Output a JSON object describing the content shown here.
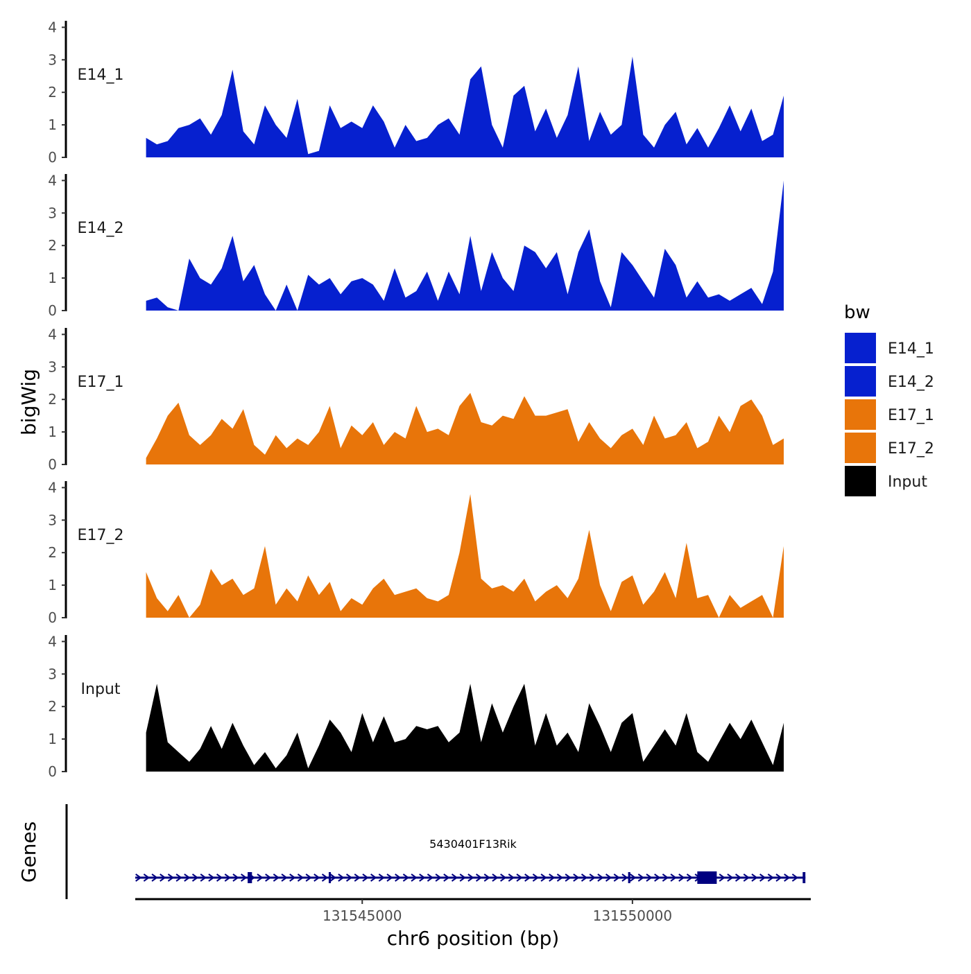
{
  "chart_data": {
    "type": "area",
    "title": "",
    "xlabel": "chr6 position (bp)",
    "ylabel": "bigWig",
    "genes_label": "Genes",
    "xlim": [
      131540800,
      131553300
    ],
    "ylim": [
      0,
      4.2
    ],
    "y_ticks": [
      "0",
      "1",
      "2",
      "3",
      "4"
    ],
    "x_ticks": [
      {
        "value": 131545000,
        "label": "131545000"
      },
      {
        "value": 131550000,
        "label": "131550000"
      }
    ],
    "legend_title": "bw",
    "series": [
      {
        "name": "E14_1",
        "label": "E14_1",
        "color": "#0620CF",
        "x": [
          131541000,
          131541200,
          131541400,
          131541600,
          131541800,
          131542000,
          131542200,
          131542400,
          131542600,
          131542800,
          131543000,
          131543200,
          131543400,
          131543600,
          131543800,
          131544000,
          131544200,
          131544400,
          131544600,
          131544800,
          131545000,
          131545200,
          131545400,
          131545600,
          131545800,
          131546000,
          131546200,
          131546400,
          131546600,
          131546800,
          131547000,
          131547200,
          131547400,
          131547600,
          131547800,
          131548000,
          131548200,
          131548400,
          131548600,
          131548800,
          131549000,
          131549200,
          131549400,
          131549600,
          131549800,
          131550000,
          131550200,
          131550400,
          131550600,
          131550800,
          131551000,
          131551200,
          131551400,
          131551600,
          131551800,
          131552000,
          131552200,
          131552400,
          131552600,
          131552800
        ],
        "values": [
          0.6,
          0.4,
          0.5,
          0.9,
          1.0,
          1.2,
          0.7,
          1.3,
          2.7,
          0.8,
          0.4,
          1.6,
          1.0,
          0.6,
          1.8,
          0.1,
          0.2,
          1.6,
          0.9,
          1.1,
          0.9,
          1.6,
          1.1,
          0.3,
          1.0,
          0.5,
          0.6,
          1.0,
          1.2,
          0.7,
          2.4,
          2.8,
          1.0,
          0.3,
          1.9,
          2.2,
          0.8,
          1.5,
          0.6,
          1.3,
          2.8,
          0.5,
          1.4,
          0.7,
          1.0,
          3.1,
          0.7,
          0.3,
          1.0,
          1.4,
          0.4,
          0.9,
          0.3,
          0.9,
          1.6,
          0.8,
          1.5,
          0.5,
          0.7,
          1.9
        ]
      },
      {
        "name": "E14_2",
        "label": "E14_2",
        "color": "#0620CF",
        "x": [
          131541000,
          131541200,
          131541400,
          131541600,
          131541800,
          131542000,
          131542200,
          131542400,
          131542600,
          131542800,
          131543000,
          131543200,
          131543400,
          131543600,
          131543800,
          131544000,
          131544200,
          131544400,
          131544600,
          131544800,
          131545000,
          131545200,
          131545400,
          131545600,
          131545800,
          131546000,
          131546200,
          131546400,
          131546600,
          131546800,
          131547000,
          131547200,
          131547400,
          131547600,
          131547800,
          131548000,
          131548200,
          131548400,
          131548600,
          131548800,
          131549000,
          131549200,
          131549400,
          131549600,
          131549800,
          131550000,
          131550200,
          131550400,
          131550600,
          131550800,
          131551000,
          131551200,
          131551400,
          131551600,
          131551800,
          131552000,
          131552200,
          131552400,
          131552600,
          131552800
        ],
        "values": [
          0.3,
          0.4,
          0.1,
          0.0,
          1.6,
          1.0,
          0.8,
          1.3,
          2.3,
          0.9,
          1.4,
          0.5,
          0.0,
          0.8,
          0.0,
          1.1,
          0.8,
          1.0,
          0.5,
          0.9,
          1.0,
          0.8,
          0.3,
          1.3,
          0.4,
          0.6,
          1.2,
          0.3,
          1.2,
          0.5,
          2.3,
          0.6,
          1.8,
          1.0,
          0.6,
          2.0,
          1.8,
          1.3,
          1.8,
          0.5,
          1.8,
          2.5,
          0.9,
          0.1,
          1.8,
          1.4,
          0.9,
          0.4,
          1.9,
          1.4,
          0.4,
          0.9,
          0.4,
          0.5,
          0.3,
          0.5,
          0.7,
          0.2,
          1.2,
          4.0
        ]
      },
      {
        "name": "E17_1",
        "label": "E17_1",
        "color": "#E8750A",
        "x": [
          131541000,
          131541200,
          131541400,
          131541600,
          131541800,
          131542000,
          131542200,
          131542400,
          131542600,
          131542800,
          131543000,
          131543200,
          131543400,
          131543600,
          131543800,
          131544000,
          131544200,
          131544400,
          131544600,
          131544800,
          131545000,
          131545200,
          131545400,
          131545600,
          131545800,
          131546000,
          131546200,
          131546400,
          131546600,
          131546800,
          131547000,
          131547200,
          131547400,
          131547600,
          131547800,
          131548000,
          131548200,
          131548400,
          131548600,
          131548800,
          131549000,
          131549200,
          131549400,
          131549600,
          131549800,
          131550000,
          131550200,
          131550400,
          131550600,
          131550800,
          131551000,
          131551200,
          131551400,
          131551600,
          131551800,
          131552000,
          131552200,
          131552400,
          131552600,
          131552800
        ],
        "values": [
          0.2,
          0.8,
          1.5,
          1.9,
          0.9,
          0.6,
          0.9,
          1.4,
          1.1,
          1.7,
          0.6,
          0.3,
          0.9,
          0.5,
          0.8,
          0.6,
          1.0,
          1.8,
          0.5,
          1.2,
          0.9,
          1.3,
          0.6,
          1.0,
          0.8,
          1.8,
          1.0,
          1.1,
          0.9,
          1.8,
          2.2,
          1.3,
          1.2,
          1.5,
          1.4,
          2.1,
          1.5,
          1.5,
          1.6,
          1.7,
          0.7,
          1.3,
          0.8,
          0.5,
          0.9,
          1.1,
          0.6,
          1.5,
          0.8,
          0.9,
          1.3,
          0.5,
          0.7,
          1.5,
          1.0,
          1.8,
          2.0,
          1.5,
          0.6,
          0.8
        ]
      },
      {
        "name": "E17_2",
        "label": "E17_2",
        "color": "#E8750A",
        "x": [
          131541000,
          131541200,
          131541400,
          131541600,
          131541800,
          131542000,
          131542200,
          131542400,
          131542600,
          131542800,
          131543000,
          131543200,
          131543400,
          131543600,
          131543800,
          131544000,
          131544200,
          131544400,
          131544600,
          131544800,
          131545000,
          131545200,
          131545400,
          131545600,
          131545800,
          131546000,
          131546200,
          131546400,
          131546600,
          131546800,
          131547000,
          131547200,
          131547400,
          131547600,
          131547800,
          131548000,
          131548200,
          131548400,
          131548600,
          131548800,
          131549000,
          131549200,
          131549400,
          131549600,
          131549800,
          131550000,
          131550200,
          131550400,
          131550600,
          131550800,
          131551000,
          131551200,
          131551400,
          131551600,
          131551800,
          131552000,
          131552200,
          131552400,
          131552600,
          131552800
        ],
        "values": [
          1.4,
          0.6,
          0.2,
          0.7,
          0.0,
          0.4,
          1.5,
          1.0,
          1.2,
          0.7,
          0.9,
          2.2,
          0.4,
          0.9,
          0.5,
          1.3,
          0.7,
          1.1,
          0.2,
          0.6,
          0.4,
          0.9,
          1.2,
          0.7,
          0.8,
          0.9,
          0.6,
          0.5,
          0.7,
          2.0,
          3.8,
          1.2,
          0.9,
          1.0,
          0.8,
          1.2,
          0.5,
          0.8,
          1.0,
          0.6,
          1.2,
          2.7,
          1.0,
          0.2,
          1.1,
          1.3,
          0.4,
          0.8,
          1.4,
          0.6,
          2.3,
          0.6,
          0.7,
          0.0,
          0.7,
          0.3,
          0.5,
          0.7,
          0.0,
          2.2
        ]
      },
      {
        "name": "Input",
        "label": "Input",
        "color": "#000000",
        "x": [
          131541000,
          131541200,
          131541400,
          131541600,
          131541800,
          131542000,
          131542200,
          131542400,
          131542600,
          131542800,
          131543000,
          131543200,
          131543400,
          131543600,
          131543800,
          131544000,
          131544200,
          131544400,
          131544600,
          131544800,
          131545000,
          131545200,
          131545400,
          131545600,
          131545800,
          131546000,
          131546200,
          131546400,
          131546600,
          131546800,
          131547000,
          131547200,
          131547400,
          131547600,
          131547800,
          131548000,
          131548200,
          131548400,
          131548600,
          131548800,
          131549000,
          131549200,
          131549400,
          131549600,
          131549800,
          131550000,
          131550200,
          131550400,
          131550600,
          131550800,
          131551000,
          131551200,
          131551400,
          131551600,
          131551800,
          131552000,
          131552200,
          131552400,
          131552600,
          131552800
        ],
        "values": [
          1.2,
          2.7,
          0.9,
          0.6,
          0.3,
          0.7,
          1.4,
          0.7,
          1.5,
          0.8,
          0.2,
          0.6,
          0.1,
          0.5,
          1.2,
          0.1,
          0.8,
          1.6,
          1.2,
          0.6,
          1.8,
          0.9,
          1.7,
          0.9,
          1.0,
          1.4,
          1.3,
          1.4,
          0.9,
          1.2,
          2.7,
          0.9,
          2.1,
          1.2,
          2.0,
          2.7,
          0.8,
          1.8,
          0.8,
          1.2,
          0.6,
          2.1,
          1.4,
          0.6,
          1.5,
          1.8,
          0.3,
          0.8,
          1.3,
          0.8,
          1.8,
          0.6,
          0.3,
          0.9,
          1.5,
          1.0,
          1.6,
          0.9,
          0.2,
          1.5
        ]
      }
    ],
    "gene_track": {
      "name": "5430401F13Rik",
      "strand": "+",
      "color": "#000080",
      "start": 131540800,
      "end": 131553200,
      "exons": [
        [
          131542880,
          131542960
        ],
        [
          131544380,
          131544420
        ],
        [
          131549920,
          131549960
        ],
        [
          131551200,
          131551560
        ],
        [
          131553150,
          131553200
        ]
      ]
    }
  }
}
